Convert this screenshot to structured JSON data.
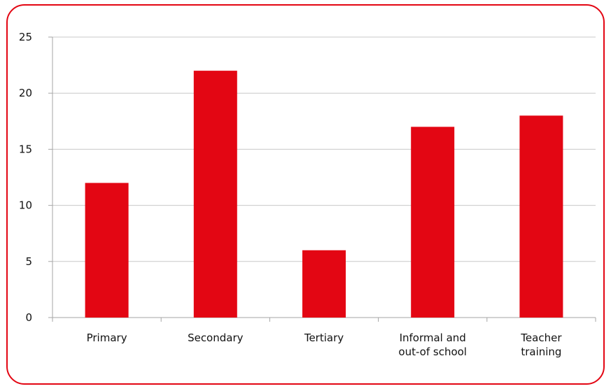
{
  "chart_data": {
    "type": "bar",
    "categories": [
      [
        "Primary"
      ],
      [
        "Secondary"
      ],
      [
        "Tertiary"
      ],
      [
        "Informal and",
        "out-of school"
      ],
      [
        "Teacher",
        "training"
      ]
    ],
    "values": [
      12,
      22,
      6,
      17,
      18
    ],
    "ylim": [
      0,
      25
    ],
    "yticks": [
      0,
      5,
      10,
      15,
      20,
      25
    ],
    "grid": true,
    "legend": "none",
    "title": "",
    "xlabel": "",
    "ylabel": ""
  },
  "colors": {
    "bar": "#e30613",
    "frame": "#e30613",
    "grid": "#c8c8c8",
    "axis": "#a6a6a6"
  }
}
